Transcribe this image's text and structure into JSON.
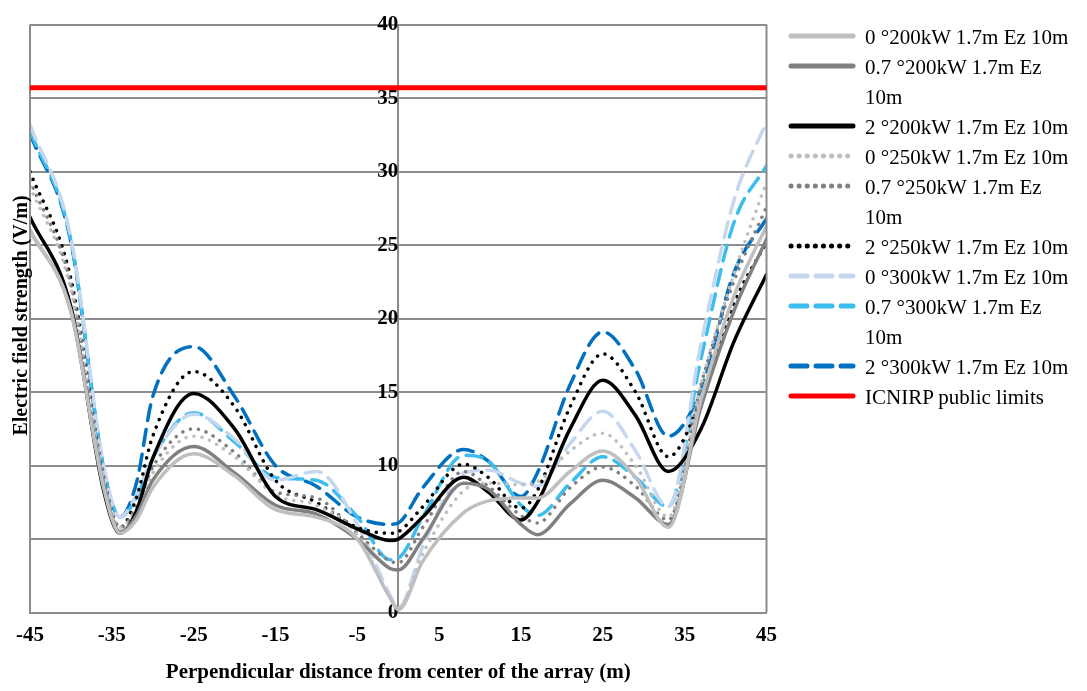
{
  "chart_data": {
    "type": "line",
    "xlabel": "Perpendicular distance from center of the array (m)",
    "ylabel": "Electric field strength (V/m)",
    "x": [
      -45,
      -40,
      -36,
      -34,
      -32,
      -30,
      -25,
      -20,
      -15,
      -10,
      -5,
      -1,
      0,
      3,
      8,
      11,
      15,
      17,
      21,
      25,
      29,
      33,
      37,
      41,
      45
    ],
    "xlim": [
      -45,
      45
    ],
    "xticks": [
      -45,
      -35,
      -25,
      -15,
      -5,
      5,
      15,
      25,
      35,
      45
    ],
    "ylim": [
      0,
      40
    ],
    "yticks": [
      0,
      {
        "value": 5,
        "label": null
      },
      10,
      15,
      20,
      25,
      30,
      35,
      40
    ],
    "grid": "y",
    "legend": "right",
    "marker": "none",
    "series": [
      {
        "name": "0 °200kW  1.7m Ez 10m",
        "color": "#bfbfbf",
        "line_style": "solid",
        "values": [
          26.0,
          20.5,
          8.5,
          5.4,
          6.3,
          8.5,
          10.8,
          9.3,
          7.0,
          6.5,
          5.0,
          1.0,
          0.2,
          3.5,
          6.8,
          7.6,
          7.8,
          7.8,
          9.6,
          11.0,
          9.2,
          5.8,
          14.5,
          21.5,
          26.3
        ]
      },
      {
        "name": "0.7 °200kW  1.7m Ez 10m",
        "color": "#808080",
        "line_style": "solid",
        "values": [
          26.0,
          20.5,
          8.6,
          5.5,
          6.6,
          9.0,
          11.3,
          9.5,
          7.3,
          6.7,
          5.0,
          3.0,
          2.9,
          5.0,
          8.8,
          8.4,
          6.0,
          5.3,
          7.4,
          9.0,
          7.8,
          6.0,
          14.0,
          20.5,
          25.4
        ]
      },
      {
        "name": "  2 °200kW  1.7m Ez 10m",
        "color": "#000000",
        "line_style": "solid",
        "values": [
          26.9,
          20.8,
          8.3,
          5.4,
          6.9,
          10.5,
          14.9,
          12.5,
          7.9,
          7.0,
          5.7,
          4.9,
          5.0,
          6.5,
          9.2,
          8.2,
          6.3,
          7.5,
          12.5,
          15.8,
          13.4,
          9.6,
          12.5,
          18.4,
          23.0
        ]
      },
      {
        "name": "0 °250kW 1.7m Ez 10m",
        "color": "#bfbfbf",
        "line_style": "dotted",
        "values": [
          29.0,
          22.0,
          9.0,
          5.8,
          7.0,
          9.5,
          12.0,
          10.6,
          8.0,
          7.3,
          5.3,
          1.0,
          0.3,
          4.0,
          8.3,
          8.8,
          8.7,
          8.9,
          11.0,
          12.2,
          10.0,
          6.5,
          15.5,
          23.0,
          29.3
        ]
      },
      {
        "name": "0.7 °250kW 1.7m Ez 10m",
        "color": "#808080",
        "line_style": "dotted",
        "values": [
          29.4,
          22.3,
          9.2,
          5.8,
          7.2,
          9.9,
          12.5,
          10.9,
          8.2,
          7.8,
          5.4,
          3.5,
          3.4,
          5.8,
          9.6,
          8.6,
          6.6,
          6.1,
          8.5,
          9.9,
          8.6,
          6.3,
          15.5,
          22.5,
          27.6
        ]
      },
      {
        "name": "2 °250kW 1.7m Ez 10m",
        "color": "#000000",
        "line_style": "dotted",
        "values": [
          30.0,
          22.7,
          9.2,
          5.8,
          7.8,
          12.0,
          16.4,
          14.0,
          9.0,
          7.5,
          5.8,
          5.4,
          5.5,
          7.2,
          10.1,
          9.2,
          7.1,
          8.3,
          14.0,
          17.6,
          15.0,
          10.6,
          14.5,
          21.0,
          25.2
        ]
      },
      {
        "name": "0 °300kW 1.7m Ez 10m",
        "color": "#c5d7ef",
        "line_style": "dashed",
        "values": [
          33.2,
          25.5,
          10.0,
          6.5,
          8.0,
          10.5,
          13.5,
          11.8,
          9.0,
          9.6,
          6.0,
          1.2,
          0.3,
          4.5,
          9.5,
          9.7,
          8.8,
          8.6,
          11.5,
          13.7,
          11.0,
          7.2,
          18.3,
          28.0,
          33.4
        ]
      },
      {
        "name": "0.7 °300kW 1.7m Ez 10m",
        "color": "#3cbdee",
        "line_style": "dashed",
        "values": [
          32.8,
          25.3,
          9.8,
          6.5,
          7.8,
          10.5,
          13.6,
          11.6,
          9.2,
          9.0,
          6.5,
          3.6,
          3.7,
          6.5,
          10.7,
          10.3,
          7.3,
          6.6,
          8.8,
          10.6,
          9.2,
          7.2,
          17.3,
          26.5,
          30.4
        ]
      },
      {
        "name": "2 °300kW 1.7m Ez 10m",
        "color": "#0070c0",
        "line_style": "dashed",
        "values": [
          32.6,
          25.2,
          9.8,
          6.5,
          8.8,
          14.7,
          18.1,
          14.7,
          10.0,
          8.6,
          6.5,
          6.0,
          6.1,
          8.5,
          11.1,
          10.3,
          7.9,
          9.5,
          15.5,
          19.1,
          16.5,
          12.0,
          15.2,
          23.1,
          26.8
        ]
      }
    ],
    "ref_lines": [
      {
        "axis": "y",
        "value": 35.7,
        "label": "ICNIRP public limits",
        "color": "#ff0000",
        "line_style": "solid"
      }
    ]
  }
}
